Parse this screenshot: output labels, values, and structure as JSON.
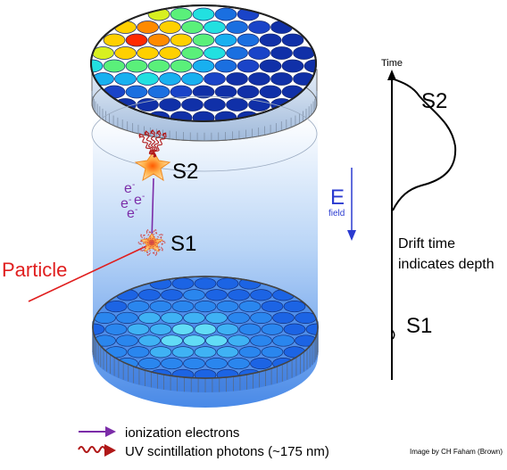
{
  "labels": {
    "s2": "S2",
    "s1": "S1",
    "particle": "Particle",
    "e_field_letter": "E",
    "e_field_sub": "field",
    "electrons": [
      "e",
      "e",
      "e",
      "e"
    ],
    "electron_sup": "-",
    "time_axis": "Time",
    "pulse_s2": "S2",
    "pulse_s1": "S1",
    "drift_line1": "Drift time",
    "drift_line2": "indicates depth",
    "legend_electrons": "ionization electrons",
    "legend_photons": "UV scintillation photons (~175 nm)",
    "credit": "Image by CH Faham (Brown)"
  },
  "colors": {
    "particle": "#e01e1e",
    "electron": "#7b2ca8",
    "photon": "#b01818",
    "efield": "#2a3ad0",
    "tank_top": "#ffffff",
    "tank_bottom": "#3f83e6",
    "pmt_dark": "#1040b8"
  },
  "top_array_palette": [
    "#ff2a00",
    "#ff8a00",
    "#ffd000",
    "#d8f020",
    "#5af07a",
    "#22e0e0",
    "#18b0f0",
    "#1a6fe0",
    "#1a44c8",
    "#1030a8"
  ],
  "bottom_array_palette": [
    "#1a4ad8",
    "#1c64e4",
    "#2a86ee",
    "#3fb2f4",
    "#62dcf6"
  ]
}
